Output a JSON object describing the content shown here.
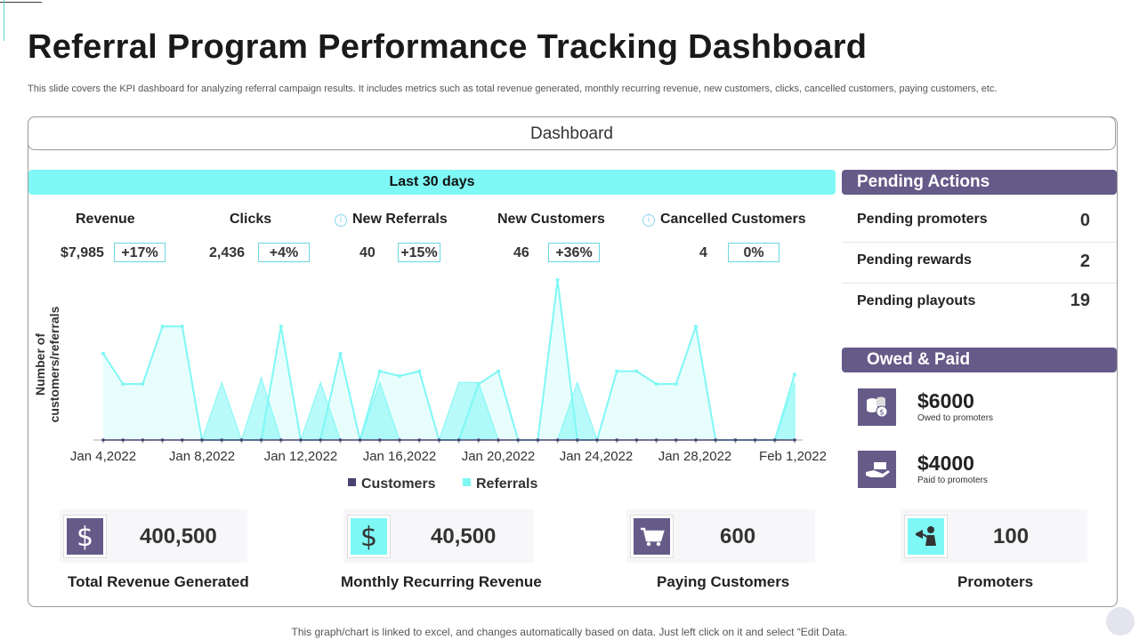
{
  "title": "Referral Program Performance Tracking Dashboard",
  "subtitle": "This slide covers the KPI dashboard for analyzing referral campaign results. It includes metrics such as total revenue generated, monthly recurring revenue, new customers, clicks, cancelled customers, paying customers, etc.",
  "dashboard_header": "Dashboard",
  "period_label": "Last 30 days",
  "kpis": [
    {
      "label": "Revenue",
      "value": "$7,985",
      "change": "+17%",
      "info": false
    },
    {
      "label": "Clicks",
      "value": "2,436",
      "change": "+4%",
      "info": false
    },
    {
      "label": "New Referrals",
      "value": "40",
      "change": "+15%",
      "info": true
    },
    {
      "label": "New Customers",
      "value": "46",
      "change": "+36%",
      "info": false
    },
    {
      "label": "Cancelled Customers",
      "value": "4",
      "change": "0%",
      "info": true
    }
  ],
  "info_icon": "i",
  "chart_data": {
    "type": "area",
    "ylabel": "Number of customers/referrals",
    "x_tick_labels": [
      "Jan 4,2022",
      "Jan 8,2022",
      "Jan 12,2022",
      "Jan 16,2022",
      "Jan 20,2022",
      "Jan 24,2022",
      "Jan 28,2022",
      "Feb 1,2022"
    ],
    "x": [
      "Jan 4",
      "Jan 5",
      "Jan 6",
      "Jan 7",
      "Jan 8",
      "Jan 9",
      "Jan 10",
      "Jan 11",
      "Jan 12",
      "Jan 13",
      "Jan 14",
      "Jan 15",
      "Jan 16",
      "Jan 17",
      "Jan 18",
      "Jan 19",
      "Jan 20",
      "Jan 21",
      "Jan 22",
      "Jan 23",
      "Jan 24",
      "Jan 25",
      "Jan 26",
      "Jan 27",
      "Jan 28",
      "Jan 29",
      "Jan 30",
      "Jan 31",
      "Feb 1",
      "Feb 2",
      "Feb 3",
      "Feb 4",
      "Feb 5",
      "Feb 6",
      "Feb 7",
      "Feb 8"
    ],
    "ylim": [
      0,
      10
    ],
    "series": [
      {
        "name": "Customers",
        "color": "#4b4270",
        "values": [
          0,
          0,
          0,
          0,
          0,
          0,
          0,
          0,
          0,
          0,
          0,
          0,
          0,
          0,
          0,
          0,
          0,
          0,
          0,
          0,
          0,
          0,
          0,
          0,
          0,
          0,
          0,
          0,
          0,
          0,
          0,
          0,
          0,
          0,
          0,
          0
        ]
      },
      {
        "name": "Referrals",
        "color": "#7ef8f5",
        "values": [
          5.4,
          3.5,
          3.5,
          7.1,
          7.1,
          0,
          0,
          0,
          0,
          7.1,
          0,
          0,
          5.4,
          0,
          4.3,
          4.0,
          4.3,
          0,
          0,
          3.5,
          4.3,
          0,
          0,
          10,
          0,
          0,
          4.3,
          4.3,
          3.5,
          3.5,
          7.1,
          0,
          0,
          0,
          0,
          4.1
        ]
      },
      {
        "name": "Referrals-secondary",
        "color": "#7ef8f5",
        "values": [
          0,
          0,
          0,
          0,
          0,
          0,
          3.6,
          0,
          3.9,
          0,
          0,
          3.6,
          0,
          0,
          3.6,
          0,
          0,
          0,
          3.6,
          3.6,
          0,
          0,
          0,
          0,
          3.6,
          0,
          0,
          0,
          0,
          0,
          0,
          0,
          0,
          0,
          0,
          3.6
        ]
      }
    ]
  },
  "legend": [
    {
      "label": "Customers",
      "color": "#4b4270"
    },
    {
      "label": "Referrals",
      "color": "#7ef8f5"
    }
  ],
  "pending_actions": {
    "title": "Pending Actions",
    "items": [
      {
        "label": "Pending promoters",
        "value": "0"
      },
      {
        "label": "Pending rewards",
        "value": "2"
      },
      {
        "label": "Pending playouts",
        "value": "19"
      }
    ]
  },
  "owed_paid": {
    "title": "Owed & Paid",
    "items": [
      {
        "amount": "$6000",
        "label": "Owed to promoters",
        "icon": "coins-icon"
      },
      {
        "amount": "$4000",
        "label": "Paid to promoters",
        "icon": "hand-money-icon"
      }
    ]
  },
  "bottom_metrics": [
    {
      "value": "400,500",
      "label": "Total Revenue Generated",
      "icon": "dollar-icon",
      "icon_bg": "#655a88",
      "icon_fg": "#ffffff"
    },
    {
      "value": "40,500",
      "label": "Monthly Recurring Revenue",
      "icon": "dollar-icon",
      "icon_bg": "#7ef8f5",
      "icon_fg": "#333333"
    },
    {
      "value": "600",
      "label": "Paying Customers",
      "icon": "cart-icon",
      "icon_bg": "#655a88",
      "icon_fg": "#ffffff"
    },
    {
      "value": "100",
      "label": "Promoters",
      "icon": "promoter-icon",
      "icon_bg": "#7ef8f5",
      "icon_fg": "#333333"
    }
  ],
  "footer": "This graph/chart is linked to excel,  and changes automatically based on data. Just left click on it and select “Edit Data."
}
